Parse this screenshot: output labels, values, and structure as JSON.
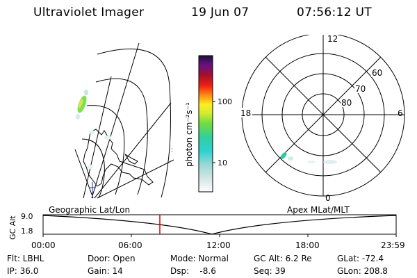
{
  "header": {
    "title": "Ultraviolet Imager",
    "date": "19 Jun 07",
    "time": "07:56:12 UT"
  },
  "colorbar": {
    "label": "photon cm⁻²s⁻¹",
    "ticks": [
      "100",
      "10"
    ]
  },
  "polar_plot": {
    "mlt_labels": [
      "12",
      "18",
      "6",
      "0"
    ],
    "lat_labels": [
      "60",
      "70",
      "80"
    ]
  },
  "timeline": {
    "label_left": "Geographic Lat/Lon",
    "label_right": "Apex MLat/MLT",
    "axis_title": "GC Alt",
    "y_ticks": [
      "9.0",
      "1.8"
    ],
    "x_ticks": [
      "00:00",
      "06:00",
      "12:00",
      "18:00",
      "23:59"
    ],
    "marker_time": "07:56"
  },
  "info": {
    "flt": "Flt: LBHL",
    "door": "Door: Open",
    "mode": "Mode: Normal",
    "gc_alt": "GC Alt: 6.2 Re",
    "glat": "GLat: -72.4",
    "ip": "IP: 36.0",
    "gain": "Gain: 14",
    "dsp": "Dsp:    -8.6",
    "seq": "Seq: 39",
    "glon": "GLon: 208.8"
  },
  "colors": {
    "marker": "#dd0000",
    "track": "#000000"
  }
}
